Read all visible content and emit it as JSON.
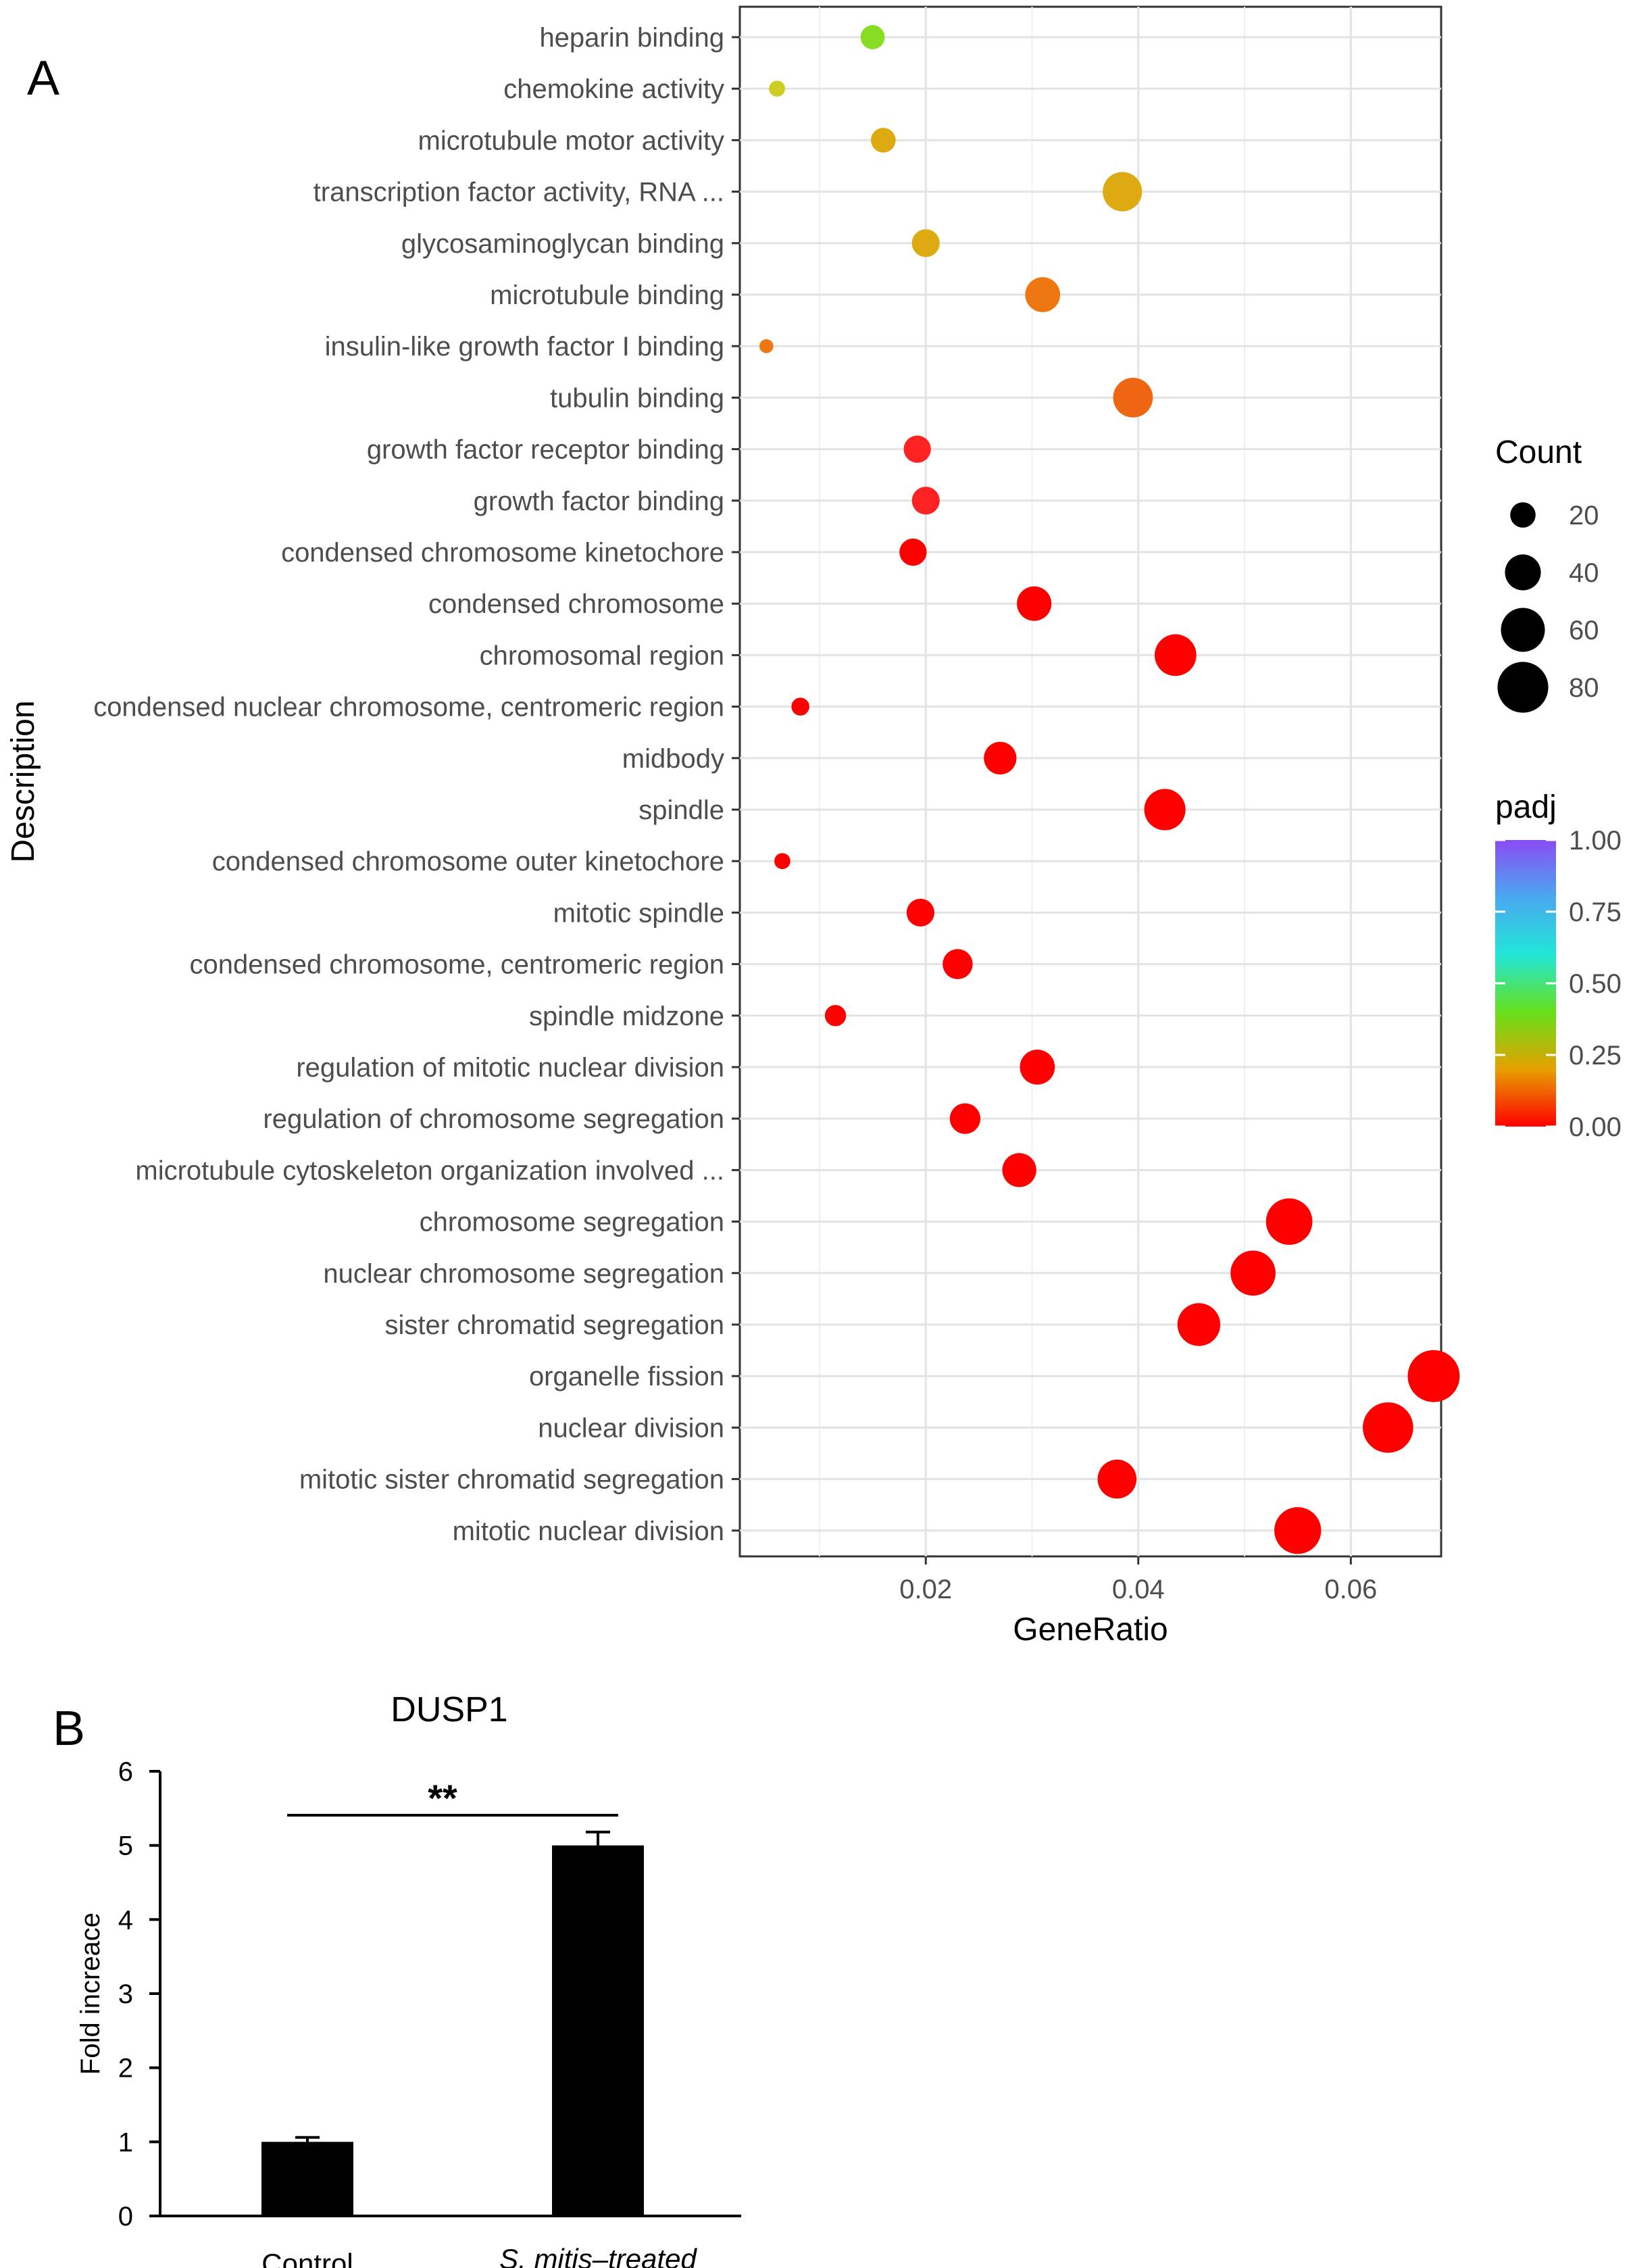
{
  "panel_labels": {
    "a": "A",
    "b": "B"
  },
  "chart_data": [
    {
      "type": "scatter",
      "subtype": "bubble",
      "panel": "A",
      "xlabel": "GeneRatio",
      "ylabel": "Description",
      "xlim": [
        0.0025,
        0.0685
      ],
      "xticks": [
        0.02,
        0.04,
        0.06
      ],
      "xtick_labels": [
        "0.02",
        "0.04",
        "0.06"
      ],
      "grid": true,
      "size_legend": {
        "title": "Count",
        "values": [
          20,
          40,
          60,
          80
        ],
        "labels": [
          "20",
          "40",
          "60",
          "80"
        ]
      },
      "color_legend": {
        "title": "padj",
        "ticks": [
          1.0,
          0.75,
          0.5,
          0.25,
          0.0
        ],
        "tick_labels": [
          "1.00",
          "0.75",
          "0.50",
          "0.25",
          "0.00"
        ],
        "stops": [
          "#ff0000",
          "#e6a000",
          "#66e01a",
          "#22e6d8",
          "#4aa8f0",
          "#8a4cf5"
        ]
      },
      "points": [
        {
          "term": "heparin binding",
          "gene_ratio": 0.015,
          "count": 18,
          "padj": 0.32,
          "color": "#88dd22"
        },
        {
          "term": "chemokine activity",
          "gene_ratio": 0.006,
          "count": 8,
          "padj": 0.2,
          "color": "#cccc22"
        },
        {
          "term": "microtubule motor activity",
          "gene_ratio": 0.016,
          "count": 19,
          "padj": 0.15,
          "color": "#ddaa11"
        },
        {
          "term": "transcription factor activity, RNA ...",
          "gene_ratio": 0.0385,
          "count": 48,
          "padj": 0.15,
          "color": "#ddaa11"
        },
        {
          "term": "glycosaminoglycan binding",
          "gene_ratio": 0.02,
          "count": 24,
          "padj": 0.15,
          "color": "#ddaa11"
        },
        {
          "term": "microtubule binding",
          "gene_ratio": 0.031,
          "count": 38,
          "padj": 0.1,
          "color": "#ee7711"
        },
        {
          "term": "insulin-like growth factor I binding",
          "gene_ratio": 0.005,
          "count": 6,
          "padj": 0.1,
          "color": "#ee7711"
        },
        {
          "term": "tubulin binding",
          "gene_ratio": 0.0395,
          "count": 49,
          "padj": 0.1,
          "color": "#ee6611"
        },
        {
          "term": "growth factor receptor binding",
          "gene_ratio": 0.0192,
          "count": 23,
          "padj": 0.03,
          "color": "#ff2222"
        },
        {
          "term": "growth factor binding",
          "gene_ratio": 0.02,
          "count": 24,
          "padj": 0.03,
          "color": "#ff2222"
        },
        {
          "term": "condensed chromosome kinetochore",
          "gene_ratio": 0.0188,
          "count": 23,
          "padj": 0.01,
          "color": "#ff0000"
        },
        {
          "term": "condensed chromosome",
          "gene_ratio": 0.0302,
          "count": 37,
          "padj": 0.01,
          "color": "#ff0000"
        },
        {
          "term": "chromosomal region",
          "gene_ratio": 0.0435,
          "count": 54,
          "padj": 0.01,
          "color": "#ff0000"
        },
        {
          "term": "condensed nuclear chromosome, centromeric region",
          "gene_ratio": 0.0082,
          "count": 10,
          "padj": 0.01,
          "color": "#ff0000"
        },
        {
          "term": "midbody",
          "gene_ratio": 0.027,
          "count": 33,
          "padj": 0.01,
          "color": "#ff0000"
        },
        {
          "term": "spindle",
          "gene_ratio": 0.0425,
          "count": 53,
          "padj": 0.01,
          "color": "#ff0000"
        },
        {
          "term": "condensed chromosome outer kinetochore",
          "gene_ratio": 0.0065,
          "count": 8,
          "padj": 0.01,
          "color": "#ff0000"
        },
        {
          "term": "mitotic spindle",
          "gene_ratio": 0.0195,
          "count": 24,
          "padj": 0.01,
          "color": "#ff0000"
        },
        {
          "term": "condensed chromosome, centromeric region",
          "gene_ratio": 0.023,
          "count": 28,
          "padj": 0.01,
          "color": "#ff0000"
        },
        {
          "term": "spindle midzone",
          "gene_ratio": 0.0115,
          "count": 14,
          "padj": 0.01,
          "color": "#ff0000"
        },
        {
          "term": "regulation of mitotic nuclear division",
          "gene_ratio": 0.0305,
          "count": 38,
          "padj": 0.01,
          "color": "#ff0000"
        },
        {
          "term": "regulation of chromosome segregation",
          "gene_ratio": 0.0237,
          "count": 29,
          "padj": 0.01,
          "color": "#ff0000"
        },
        {
          "term": "microtubule cytoskeleton organization involved ...",
          "gene_ratio": 0.0288,
          "count": 36,
          "padj": 0.01,
          "color": "#ff0000"
        },
        {
          "term": "chromosome segregation",
          "gene_ratio": 0.0542,
          "count": 67,
          "padj": 0.0,
          "color": "#ff0000"
        },
        {
          "term": "nuclear chromosome segregation",
          "gene_ratio": 0.0508,
          "count": 63,
          "padj": 0.0,
          "color": "#ff0000"
        },
        {
          "term": "sister chromatid segregation",
          "gene_ratio": 0.0457,
          "count": 57,
          "padj": 0.0,
          "color": "#ff0000"
        },
        {
          "term": "organelle fission",
          "gene_ratio": 0.0678,
          "count": 84,
          "padj": 0.0,
          "color": "#ff0000"
        },
        {
          "term": "nuclear division",
          "gene_ratio": 0.0635,
          "count": 79,
          "padj": 0.0,
          "color": "#ff0000"
        },
        {
          "term": "mitotic sister chromatid segregation",
          "gene_ratio": 0.038,
          "count": 47,
          "padj": 0.0,
          "color": "#ff0000"
        },
        {
          "term": "mitotic nuclear division",
          "gene_ratio": 0.055,
          "count": 68,
          "padj": 0.0,
          "color": "#ff0000"
        }
      ]
    },
    {
      "type": "bar",
      "panel": "B",
      "title": "DUSP1",
      "xlabel": "",
      "ylabel": "Fold increace",
      "ylim": [
        0,
        6
      ],
      "yticks": [
        0,
        1,
        2,
        3,
        4,
        5,
        6
      ],
      "ytick_labels": [
        "0",
        "1",
        "2",
        "3",
        "4",
        "5",
        "6"
      ],
      "categories": [
        "Control",
        "S. mitis–treated"
      ],
      "values": [
        1.0,
        5.0
      ],
      "errors": [
        0.06,
        0.18
      ],
      "bar_color": "#000000",
      "significance": {
        "label": "**",
        "between": [
          "Control",
          "S. mitis–treated"
        ]
      }
    }
  ]
}
